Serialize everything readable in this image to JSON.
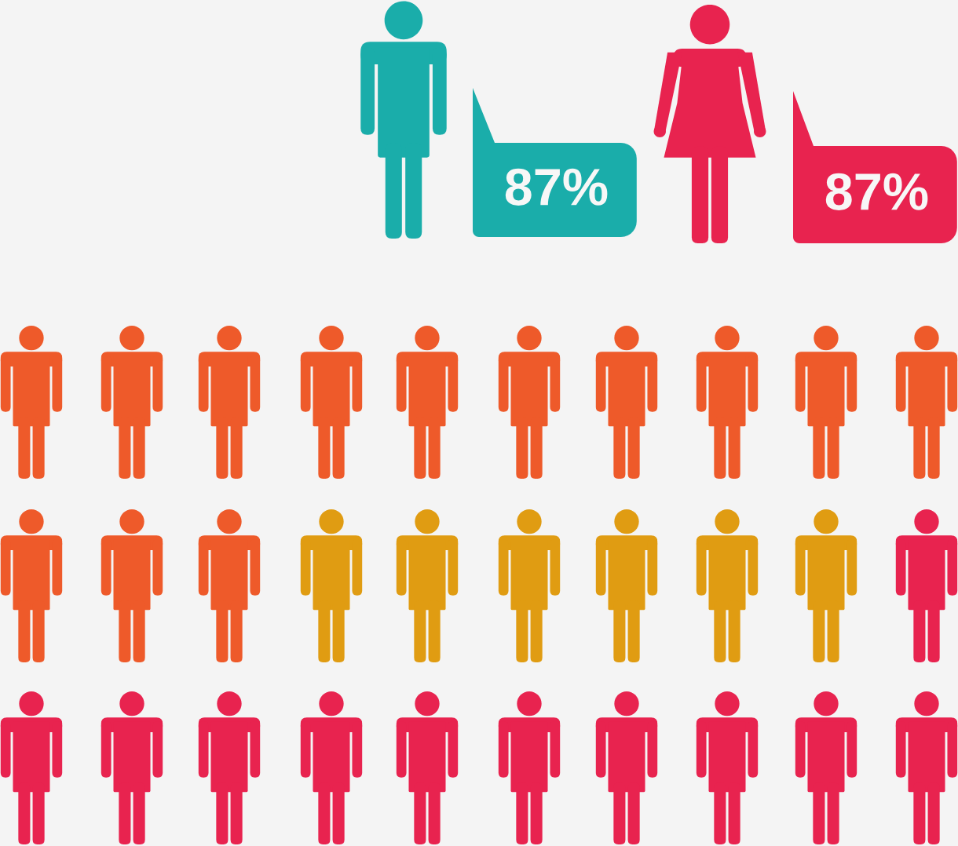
{
  "chart_data": {
    "type": "other",
    "categories": [
      null,
      null
    ],
    "values": [
      87,
      87
    ],
    "colors": [
      "#1aadaa",
      "#e8234f"
    ],
    "value_labels": [
      "87%",
      "87%"
    ]
  }
}
